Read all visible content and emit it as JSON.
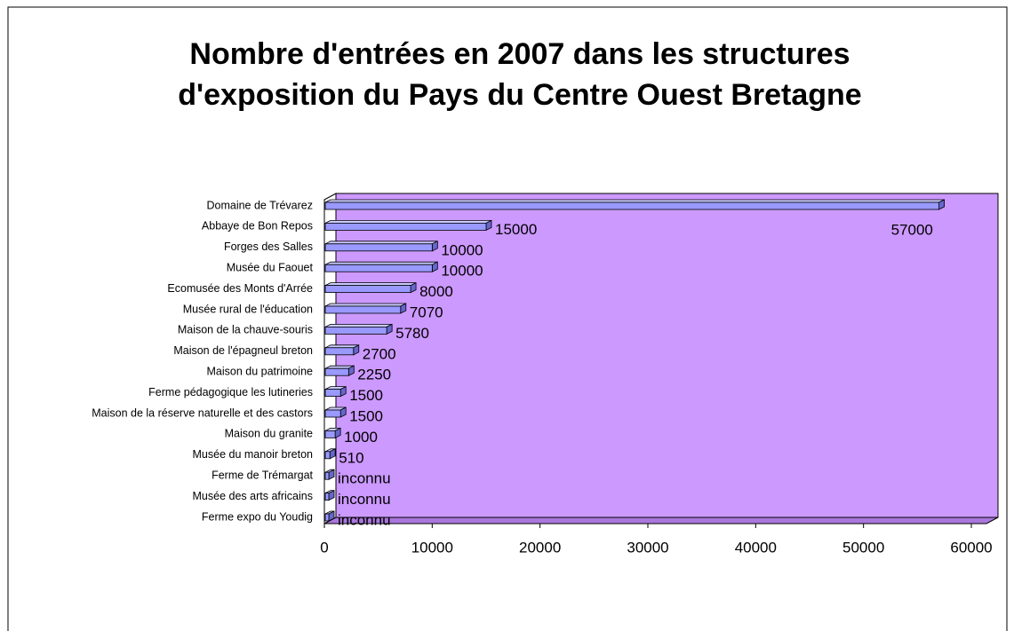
{
  "chart_data": {
    "type": "bar",
    "orientation": "horizontal",
    "title": "Nombre d'entrées en 2007 dans les structures d'exposition du Pays du Centre Ouest Bretagne",
    "categories": [
      "Domaine de Trévarez",
      "Abbaye de Bon Repos",
      "Forges des Salles",
      "Musée du Faouet",
      "Ecomusée des Monts d'Arrée",
      "Musée rural de l'éducation",
      "Maison de la chauve-souris",
      "Maison de l'épagneul breton",
      "Maison du patrimoine",
      "Ferme pédagogique les lutineries",
      "Maison de la réserve naturelle et des castors",
      "Maison du granite",
      "Musée du manoir breton",
      "Ferme de Trémargat",
      "Musée des arts africains",
      "Ferme expo du Youdig"
    ],
    "values": [
      57000,
      15000,
      10000,
      10000,
      8000,
      7070,
      5780,
      2700,
      2250,
      1500,
      1500,
      1000,
      510,
      null,
      null,
      null
    ],
    "value_labels": [
      null,
      null,
      null,
      null,
      null,
      null,
      null,
      null,
      null,
      null,
      null,
      null,
      null,
      "inconnu",
      "inconnu",
      "inconnu"
    ],
    "color": "#9999ff",
    "wall_color": "#cc99ff",
    "xlim": [
      0,
      60000
    ],
    "xticks": [
      0,
      10000,
      20000,
      30000,
      40000,
      50000,
      60000
    ]
  }
}
